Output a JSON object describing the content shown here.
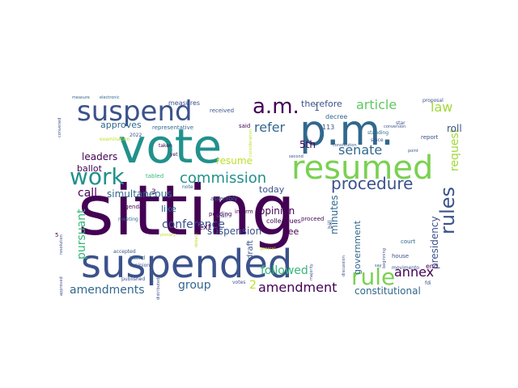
{
  "word_cloud": {
    "words": [
      {
        "text": "sitting",
        "color": "#440154"
      },
      {
        "text": "vote",
        "color": "#21918c"
      },
      {
        "text": "suspended",
        "color": "#3b528b"
      },
      {
        "text": "p.m.",
        "color": "#31688e"
      },
      {
        "text": "resumed",
        "color": "#7ad151"
      },
      {
        "text": "suspend",
        "color": "#3b528b"
      },
      {
        "text": "a.m.",
        "color": "#440154"
      },
      {
        "text": "work",
        "color": "#21918c"
      },
      {
        "text": "rules",
        "color": "#3b528b"
      },
      {
        "text": "rule",
        "color": "#7ad151"
      },
      {
        "text": "procedure",
        "color": "#3b528b"
      },
      {
        "text": "commission",
        "color": "#21918c"
      },
      {
        "text": "senate",
        "color": "#31688e"
      },
      {
        "text": "amendment",
        "color": "#440154"
      },
      {
        "text": "article",
        "color": "#5ec962"
      },
      {
        "text": "law",
        "color": "#a0da39"
      },
      {
        "text": "annex",
        "color": "#440154"
      },
      {
        "text": "request",
        "color": "#a0da39"
      },
      {
        "text": "amendments",
        "color": "#31688e"
      },
      {
        "text": "group",
        "color": "#31688e"
      },
      {
        "text": "refer",
        "color": "#31688e"
      },
      {
        "text": "pursuant",
        "color": "#35b779"
      },
      {
        "text": "conference",
        "color": "#3b528b"
      },
      {
        "text": "followed",
        "color": "#35b779"
      },
      {
        "text": "constitutional",
        "color": "#31688e"
      },
      {
        "text": "suspension",
        "color": "#3b528b"
      },
      {
        "text": "call",
        "color": "#440154"
      },
      {
        "text": "leaders",
        "color": "#440154"
      },
      {
        "text": "simultaneous",
        "color": "#31688e"
      },
      {
        "text": "resume",
        "color": "#bddf26"
      },
      {
        "text": "therefore",
        "color": "#3b528b"
      },
      {
        "text": "roll",
        "color": "#3b528b"
      },
      {
        "text": "minutes",
        "color": "#31688e"
      },
      {
        "text": "government",
        "color": "#31688e"
      },
      {
        "text": "presidency",
        "color": "#3b528b"
      },
      {
        "text": "opinion",
        "color": "#440154"
      },
      {
        "text": "today",
        "color": "#3b528b"
      },
      {
        "text": "like",
        "color": "#31688e"
      },
      {
        "text": "ballot",
        "color": "#440154"
      },
      {
        "text": "approves",
        "color": "#31688e"
      },
      {
        "text": "text",
        "color": "#440154"
      },
      {
        "text": "see",
        "color": "#440154"
      },
      {
        "text": "5th",
        "color": "#440154"
      },
      {
        "text": "2",
        "color": "#bddf26"
      },
      {
        "text": "draft",
        "color": "#3b528b"
      },
      {
        "text": "measures",
        "color": "#3b528b"
      },
      {
        "text": "decree",
        "color": "#31688e"
      },
      {
        "text": "113",
        "color": "#3b528b"
      },
      {
        "text": "received",
        "color": "#3b528b"
      },
      {
        "text": "representative",
        "color": "#31688e"
      },
      {
        "text": "colleagues",
        "color": "#440154"
      },
      {
        "text": "assembly",
        "color": "#31688e"
      },
      {
        "text": "inform",
        "color": "#440154"
      },
      {
        "text": "proceed",
        "color": "#440154"
      },
      {
        "text": "tabled",
        "color": "#35b779"
      },
      {
        "text": "agenda",
        "color": "#440154"
      },
      {
        "text": "pending",
        "color": "#440154"
      },
      {
        "text": "bill",
        "color": "#3b528b"
      },
      {
        "text": "report",
        "color": "#3b528b"
      },
      {
        "text": "house",
        "color": "#3b528b"
      },
      {
        "text": "court",
        "color": "#31688e"
      },
      {
        "text": "end",
        "color": "#440154"
      },
      {
        "text": "votes",
        "color": "#3b528b"
      },
      {
        "text": "published",
        "color": "#3b528b"
      },
      {
        "text": "accepted",
        "color": "#3b528b"
      },
      {
        "text": "shall",
        "color": "#3b528b"
      },
      {
        "text": "since",
        "color": "#3b528b"
      },
      {
        "text": "standing",
        "color": "#31688e"
      },
      {
        "text": "said",
        "color": "#440154"
      },
      {
        "text": "taken",
        "color": "#440154"
      },
      {
        "text": "yet",
        "color": "#440154"
      },
      {
        "text": "measure",
        "color": "#31688e"
      },
      {
        "text": "electronic",
        "color": "#31688e"
      },
      {
        "text": "note",
        "color": "#31688e"
      },
      {
        "text": "intend",
        "color": "#31688e"
      },
      {
        "text": "meeting",
        "color": "#31688e"
      },
      {
        "text": "opinions",
        "color": "#3b528b"
      },
      {
        "text": "2022",
        "color": "#3b528b"
      },
      {
        "text": "beginning",
        "color": "#3b528b"
      },
      {
        "text": "discussion",
        "color": "#3b528b"
      },
      {
        "text": "majority",
        "color": "#3b528b"
      },
      {
        "text": "conversion",
        "color": "#3b528b"
      },
      {
        "text": "second",
        "color": "#3b528b"
      },
      {
        "text": "constitution",
        "color": "#3b528b"
      },
      {
        "text": "star",
        "color": "#3b528b"
      },
      {
        "text": "proposal",
        "color": "#3b528b"
      },
      {
        "text": "point",
        "color": "#3b528b"
      },
      {
        "text": "movimento",
        "color": "#3b528b"
      },
      {
        "text": "fdi",
        "color": "#3b528b"
      },
      {
        "text": "say",
        "color": "#3b528b"
      },
      {
        "text": "approved",
        "color": "#3b528b"
      },
      {
        "text": "resolution",
        "color": "#3b528b"
      },
      {
        "text": "convened",
        "color": "#3b528b"
      },
      {
        "text": "distributed",
        "color": "#3b528b"
      },
      {
        "text": "general",
        "color": "#bddf26"
      },
      {
        "text": "debate",
        "color": "#bddf26"
      },
      {
        "text": "plenary",
        "color": "#bddf26"
      },
      {
        "text": "examination",
        "color": "#bddf26"
      },
      {
        "text": "consideration",
        "color": "#bddf26"
      },
      {
        "text": "1",
        "color": "#3b528b"
      },
      {
        "text": "3",
        "color": "#440154"
      },
      {
        "text": "5",
        "color": "#440154"
      }
    ]
  }
}
